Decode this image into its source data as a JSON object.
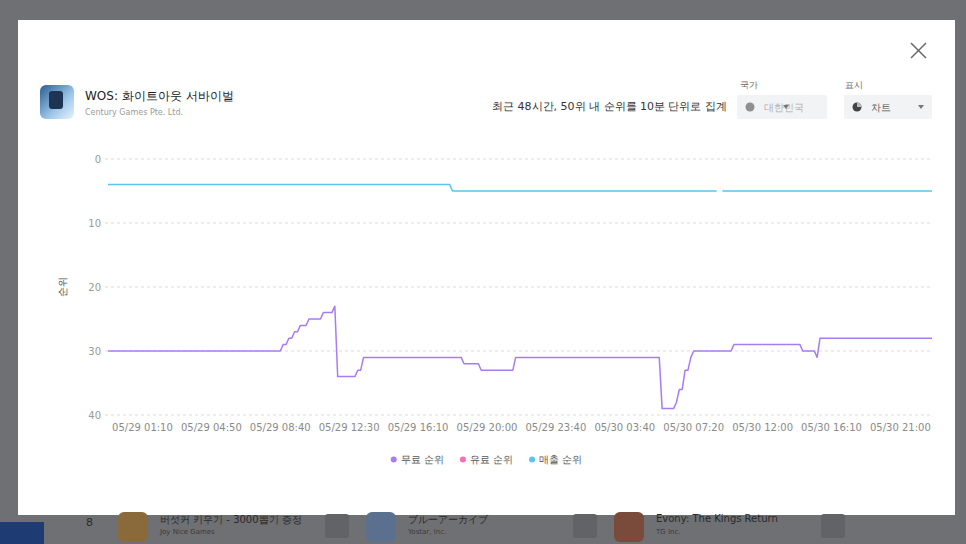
{
  "modal": {
    "app_name": "WOS: 화이트아웃 서바이벌",
    "publisher": "Century Games Pte. Ltd.",
    "country_label": "국가",
    "country_value": "대한민국",
    "display_label": "표시",
    "display_value": "차트"
  },
  "background": {
    "rank": "8",
    "apps": [
      {
        "name": "버섯커 키우기 - 3000뽑기 증정",
        "publisher": "Joy Nice Games"
      },
      {
        "name": "ブルーアーカイブ",
        "publisher": "Yostar, Inc."
      },
      {
        "name": "Evony: The Kings Return",
        "publisher": "TG Inc."
      }
    ]
  },
  "chart_data": {
    "type": "line",
    "subtitle": "최근 48시간, 50위 내 순위를 10분 단위로 집계",
    "y_label": "순위",
    "ylim": [
      40,
      0
    ],
    "yticks": [
      0,
      10,
      20,
      30,
      40
    ],
    "grid": true,
    "legend": "bottom",
    "categories": [
      null,
      null,
      null,
      null,
      null,
      null,
      null,
      null,
      null,
      null,
      null,
      null,
      "05/29 01:10",
      null,
      null,
      null,
      null,
      null,
      null,
      null,
      null,
      null,
      null,
      null,
      null,
      null,
      null,
      null,
      null,
      null,
      null,
      null,
      null,
      null,
      null,
      null,
      "05/29 04:50",
      null,
      null,
      null,
      null,
      null,
      null,
      null,
      null,
      null,
      null,
      null,
      null,
      null,
      null,
      null,
      null,
      null,
      null,
      null,
      null,
      null,
      null,
      null,
      "05/29 08:40",
      null,
      null,
      null,
      null,
      null,
      null,
      null,
      null,
      null,
      null,
      null,
      null,
      null,
      null,
      null,
      null,
      null,
      null,
      null,
      null,
      null,
      null,
      null,
      "05/29 12:30",
      null,
      null,
      null,
      null,
      null,
      null,
      null,
      null,
      null,
      null,
      null,
      null,
      null,
      null,
      null,
      null,
      null,
      null,
      null,
      null,
      null,
      null,
      null,
      "05/29 16:10",
      null,
      null,
      null,
      null,
      null,
      null,
      null,
      null,
      null,
      null,
      null,
      null,
      null,
      null,
      null,
      null,
      null,
      null,
      null,
      null,
      null,
      null,
      null,
      "05/29 20:00",
      null,
      null,
      null,
      null,
      null,
      null,
      null,
      null,
      null,
      null,
      null,
      null,
      null,
      null,
      null,
      null,
      null,
      null,
      null,
      null,
      null,
      null,
      null,
      "05/29 23:40",
      null,
      null,
      null,
      null,
      null,
      null,
      null,
      null,
      null,
      null,
      null,
      null,
      null,
      null,
      null,
      null,
      null,
      null,
      null,
      null,
      null,
      null,
      null,
      "05/30 03:40",
      null,
      null,
      null,
      null,
      null,
      null,
      null,
      null,
      null,
      null,
      null,
      null,
      null,
      null,
      null,
      null,
      null,
      null,
      null,
      null,
      null,
      null,
      null,
      "05/30 07:20",
      null,
      null,
      null,
      null,
      null,
      null,
      null,
      null,
      null,
      null,
      null,
      null,
      null,
      null,
      null,
      null,
      null,
      null,
      null,
      null,
      null,
      null,
      null,
      "05/30 12:00",
      null,
      null,
      null,
      null,
      null,
      null,
      null,
      null,
      null,
      null,
      null,
      null,
      null,
      null,
      null,
      null,
      null,
      null,
      null,
      null,
      null,
      null,
      null,
      "05/30 16:10",
      null,
      null,
      null,
      null,
      null,
      null,
      null,
      null,
      null,
      null,
      null,
      null,
      null,
      null,
      null,
      null,
      null,
      null,
      null,
      null,
      null,
      null,
      null,
      "05/30 21:00",
      null,
      null,
      null,
      null,
      null,
      null,
      null,
      null,
      null,
      null,
      null
    ],
    "series": [
      {
        "name": "무료 순위",
        "color": "#a77cf2",
        "values": [
          30,
          30,
          30,
          30,
          30,
          30,
          30,
          30,
          30,
          30,
          30,
          30,
          30,
          30,
          30,
          30,
          30,
          30,
          30,
          30,
          30,
          30,
          30,
          30,
          30,
          30,
          30,
          30,
          30,
          30,
          30,
          30,
          30,
          30,
          30,
          30,
          30,
          30,
          30,
          30,
          30,
          30,
          30,
          30,
          30,
          30,
          30,
          30,
          30,
          30,
          30,
          30,
          30,
          30,
          30,
          30,
          30,
          30,
          30,
          30,
          30,
          29,
          29,
          28,
          28,
          27,
          27,
          26,
          26,
          26,
          25,
          25,
          25,
          25,
          25,
          24,
          24,
          24,
          24,
          23,
          34,
          34,
          34,
          34,
          34,
          34,
          34,
          33,
          33,
          31,
          31,
          31,
          31,
          31,
          31,
          31,
          31,
          31,
          31,
          31,
          31,
          31,
          31,
          31,
          31,
          31,
          31,
          31,
          31,
          31,
          31,
          31,
          31,
          31,
          31,
          31,
          31,
          31,
          31,
          31,
          31,
          31,
          31,
          31,
          32,
          32,
          32,
          32,
          32,
          32,
          33,
          33,
          33,
          33,
          33,
          33,
          33,
          33,
          33,
          33,
          33,
          33,
          31,
          31,
          31,
          31,
          31,
          31,
          31,
          31,
          31,
          31,
          31,
          31,
          31,
          31,
          31,
          31,
          31,
          31,
          31,
          31,
          31,
          31,
          31,
          31,
          31,
          31,
          31,
          31,
          31,
          31,
          31,
          31,
          31,
          31,
          31,
          31,
          31,
          31,
          31,
          31,
          31,
          31,
          31,
          31,
          31,
          31,
          31,
          31,
          31,
          31,
          31,
          39,
          39,
          39,
          39,
          39,
          38,
          36,
          36,
          33,
          33,
          31,
          30,
          30,
          30,
          30,
          30,
          30,
          30,
          30,
          30,
          30,
          30,
          30,
          30,
          30,
          29,
          29,
          29,
          29,
          29,
          29,
          29,
          29,
          29,
          29,
          29,
          29,
          29,
          29,
          29,
          29,
          29,
          29,
          29,
          29,
          29,
          29,
          29,
          29,
          30,
          30,
          30,
          30,
          30,
          31,
          28,
          28,
          28,
          28,
          28,
          28,
          28,
          28,
          28,
          28,
          28,
          28,
          28,
          28,
          28,
          28,
          28,
          28,
          28,
          28,
          28,
          28,
          28,
          28,
          28,
          28,
          28,
          28,
          28,
          28,
          28,
          28,
          28,
          28,
          28,
          28,
          28,
          28,
          28,
          28
        ]
      },
      {
        "name": "유료 순위",
        "color": "#f56fb1",
        "values": [
          null,
          null,
          null,
          null,
          null,
          null,
          null,
          null,
          null,
          null,
          null,
          null,
          null,
          null,
          null,
          null,
          null,
          null,
          null,
          null,
          null,
          null,
          null,
          null,
          null,
          null,
          null,
          null,
          null,
          null,
          null,
          null,
          null,
          null,
          null,
          null,
          null,
          null,
          null,
          null,
          null,
          null,
          null,
          null,
          null,
          null,
          null,
          null,
          null,
          null,
          null,
          null,
          null,
          null,
          null,
          null,
          null,
          null,
          null,
          null,
          null,
          null,
          null,
          null,
          null,
          null,
          null,
          null,
          null,
          null,
          null,
          null,
          null,
          null,
          null,
          null,
          null,
          null,
          null,
          null,
          null,
          null,
          null,
          null,
          null,
          null,
          null,
          null,
          null,
          null,
          null,
          null,
          null,
          null,
          null,
          null,
          null,
          null,
          null,
          null,
          null,
          null,
          null,
          null,
          null,
          null,
          null,
          null,
          null,
          null,
          null,
          null,
          null,
          null,
          null,
          null,
          null,
          null,
          null,
          null,
          null,
          null,
          null,
          null,
          null,
          null,
          null,
          null,
          null,
          null,
          null,
          null,
          null,
          null,
          null,
          null,
          null,
          null,
          null,
          null,
          null,
          null,
          null,
          null,
          null,
          null,
          null,
          null,
          null,
          null,
          null,
          null,
          null,
          null,
          null,
          null,
          null,
          null,
          null,
          null,
          null,
          null,
          null,
          null,
          null,
          null,
          null,
          null,
          null,
          null,
          null,
          null,
          null,
          null,
          null,
          null,
          null,
          null,
          null,
          null,
          null,
          null,
          null,
          null,
          null,
          null,
          null,
          null,
          null,
          null,
          null,
          null,
          null,
          null,
          null,
          null,
          null,
          null,
          null,
          null,
          null,
          null,
          null,
          null,
          null,
          null,
          null,
          null,
          null,
          null,
          null,
          null,
          null,
          null,
          null,
          null,
          null,
          null,
          null,
          null,
          null,
          null,
          null,
          null,
          null,
          null,
          null,
          null,
          null,
          null,
          null,
          null,
          null,
          null,
          null,
          null,
          null,
          null,
          null,
          null,
          null,
          null,
          null,
          null,
          null,
          null,
          null,
          null,
          null,
          null,
          null,
          null,
          null,
          null,
          null,
          null,
          null,
          null,
          null,
          null,
          null,
          null,
          null,
          null,
          null,
          null,
          null,
          null,
          null,
          null,
          null,
          null,
          null,
          null,
          null,
          null,
          null,
          null,
          null,
          null,
          null,
          null,
          null,
          null,
          null,
          null,
          null,
          null
        ]
      },
      {
        "name": "매출 순위",
        "color": "#5cc3ee",
        "values": [
          4,
          4,
          4,
          4,
          4,
          4,
          4,
          4,
          4,
          4,
          4,
          4,
          4,
          4,
          4,
          4,
          4,
          4,
          4,
          4,
          4,
          4,
          4,
          4,
          4,
          4,
          4,
          4,
          4,
          4,
          4,
          4,
          4,
          4,
          4,
          4,
          4,
          4,
          4,
          4,
          4,
          4,
          4,
          4,
          4,
          4,
          4,
          4,
          4,
          4,
          4,
          4,
          4,
          4,
          4,
          4,
          4,
          4,
          4,
          4,
          4,
          4,
          4,
          4,
          4,
          4,
          4,
          4,
          4,
          4,
          4,
          4,
          4,
          4,
          4,
          4,
          4,
          4,
          4,
          4,
          4,
          4,
          4,
          4,
          4,
          4,
          4,
          4,
          4,
          4,
          4,
          4,
          4,
          4,
          4,
          4,
          4,
          4,
          4,
          4,
          4,
          4,
          4,
          4,
          4,
          4,
          4,
          4,
          4,
          4,
          4,
          4,
          4,
          4,
          4,
          4,
          4,
          4,
          4,
          4,
          5,
          5,
          5,
          5,
          5,
          5,
          5,
          5,
          5,
          5,
          5,
          5,
          5,
          5,
          5,
          5,
          5,
          5,
          5,
          5,
          5,
          5,
          5,
          5,
          5,
          5,
          5,
          5,
          5,
          5,
          5,
          5,
          5,
          5,
          5,
          5,
          5,
          5,
          5,
          5,
          5,
          5,
          5,
          5,
          5,
          5,
          5,
          5,
          5,
          5,
          5,
          5,
          5,
          5,
          5,
          5,
          5,
          5,
          5,
          5,
          5,
          5,
          5,
          5,
          5,
          5,
          5,
          5,
          5,
          5,
          5,
          5,
          5,
          5,
          5,
          5,
          5,
          5,
          5,
          5,
          5,
          5,
          5,
          5,
          5,
          5,
          5,
          5,
          5,
          5,
          5,
          5,
          5,
          null,
          5,
          5,
          5,
          5,
          5,
          5,
          5,
          5,
          5,
          5,
          5,
          5,
          5,
          5,
          5,
          5,
          5,
          5,
          5,
          5,
          5,
          5,
          5,
          5,
          5,
          5,
          5,
          5,
          5,
          5,
          5,
          5,
          5,
          5,
          5,
          5,
          5,
          5,
          5,
          5,
          5,
          5,
          5,
          5,
          5,
          5,
          5,
          5,
          5,
          5,
          5,
          5,
          5,
          5,
          5,
          5,
          5,
          5,
          5,
          5,
          5,
          5,
          5,
          5,
          5,
          5,
          5,
          5,
          5,
          5,
          5,
          5,
          5,
          5
        ]
      }
    ]
  }
}
